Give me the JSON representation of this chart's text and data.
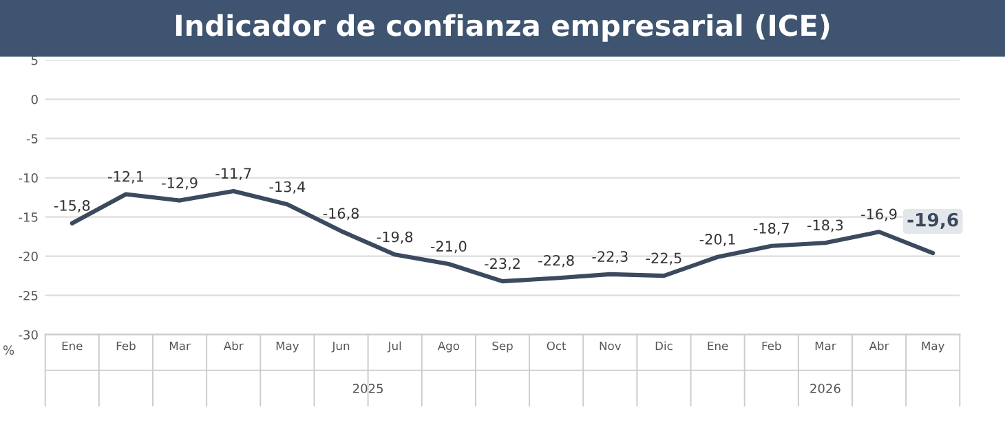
{
  "chart_data": {
    "type": "line",
    "title": "Indicador de confianza empresarial (ICE)",
    "ylabel": "%",
    "categories": [
      "Ene",
      "Feb",
      "Mar",
      "Abr",
      "May",
      "Jun",
      "Jul",
      "Ago",
      "Sep",
      "Oct",
      "Nov",
      "Dic",
      "Ene",
      "Feb",
      "Mar",
      "Abr",
      "May"
    ],
    "series": [
      {
        "color": "#3b4a5e",
        "values": [
          -15.8,
          -12.1,
          -12.9,
          -11.7,
          -13.4,
          -16.8,
          -19.8,
          -21.0,
          -23.2,
          -22.8,
          -22.3,
          -22.5,
          -20.1,
          -18.7,
          -18.3,
          -16.9,
          -19.6
        ],
        "value_labels": [
          "-15,8",
          "-12,1",
          "-12,9",
          "-11,7",
          "-13,4",
          "-16,8",
          "-19,8",
          "-21,0",
          "-23,2",
          "-22,8",
          "-22,3",
          "-22,5",
          "-20,1",
          "-18,7",
          "-18,3",
          "-16,9",
          "-19,6"
        ]
      }
    ],
    "ylim": [
      -30,
      5
    ],
    "yticks": [
      -30,
      -25,
      -20,
      -15,
      -10,
      -5,
      0,
      5
    ],
    "grid": "y",
    "marker": "none",
    "line_style": "solid",
    "annotations": [
      "2025",
      "2026"
    ]
  }
}
